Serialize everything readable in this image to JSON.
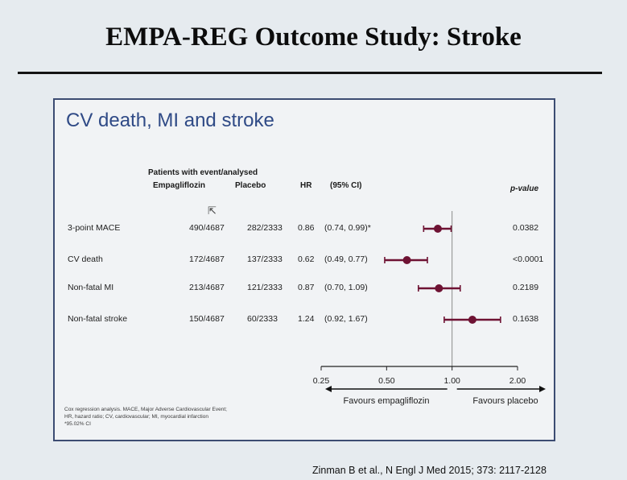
{
  "slide": {
    "title": "EMPA-REG Outcome Study: Stroke",
    "citation": "Zinman B et al., N Engl J Med 2015; 373: 2117-2128"
  },
  "panel": {
    "title": "CV death, MI and stroke",
    "headers": {
      "patients": "Patients with event/analysed",
      "empagliflozin": "Empagliflozin",
      "placebo": "Placebo",
      "hr": "HR",
      "ci": "(95% CI)",
      "pvalue": "p-value"
    },
    "footnote": [
      "Cox regression analysis. MACE, Major Adverse Cardiovascular Event;",
      "HR, hazard ratio; CV, cardiovascular; MI, myocardial infarction",
      "*95.02% CI"
    ]
  },
  "chart_data": {
    "type": "forest",
    "x_scale": "log",
    "xlim": [
      0.25,
      2.0
    ],
    "reference_line": 1.0,
    "x_ticks": [
      "0.25",
      "0.50",
      "1.00",
      "2.00"
    ],
    "x_tick_values": [
      0.25,
      0.5,
      1.0,
      2.0
    ],
    "favours_left": "Favours empagliflozin",
    "favours_right": "Favours placebo",
    "marker_color": "#6e1233",
    "rows": [
      {
        "label": "3-point MACE",
        "empagliflozin": "490/4687",
        "placebo": "282/2333",
        "hr_text": "0.86",
        "ci_text": "(0.74, 0.99)*",
        "hr": 0.86,
        "lo": 0.74,
        "hi": 0.99,
        "p": "0.0382"
      },
      {
        "label": "CV death",
        "empagliflozin": "172/4687",
        "placebo": "137/2333",
        "hr_text": "0.62",
        "ci_text": "(0.49, 0.77)",
        "hr": 0.62,
        "lo": 0.49,
        "hi": 0.77,
        "p": "<0.0001"
      },
      {
        "label": "Non-fatal MI",
        "empagliflozin": "213/4687",
        "placebo": "121/2333",
        "hr_text": "0.87",
        "ci_text": "(0.70, 1.09)",
        "hr": 0.87,
        "lo": 0.7,
        "hi": 1.09,
        "p": "0.2189"
      },
      {
        "label": "Non-fatal stroke",
        "empagliflozin": "150/4687",
        "placebo": "60/2333",
        "hr_text": "1.24",
        "ci_text": "(0.92, 1.67)",
        "hr": 1.24,
        "lo": 0.92,
        "hi": 1.67,
        "p": "0.1638"
      }
    ]
  }
}
